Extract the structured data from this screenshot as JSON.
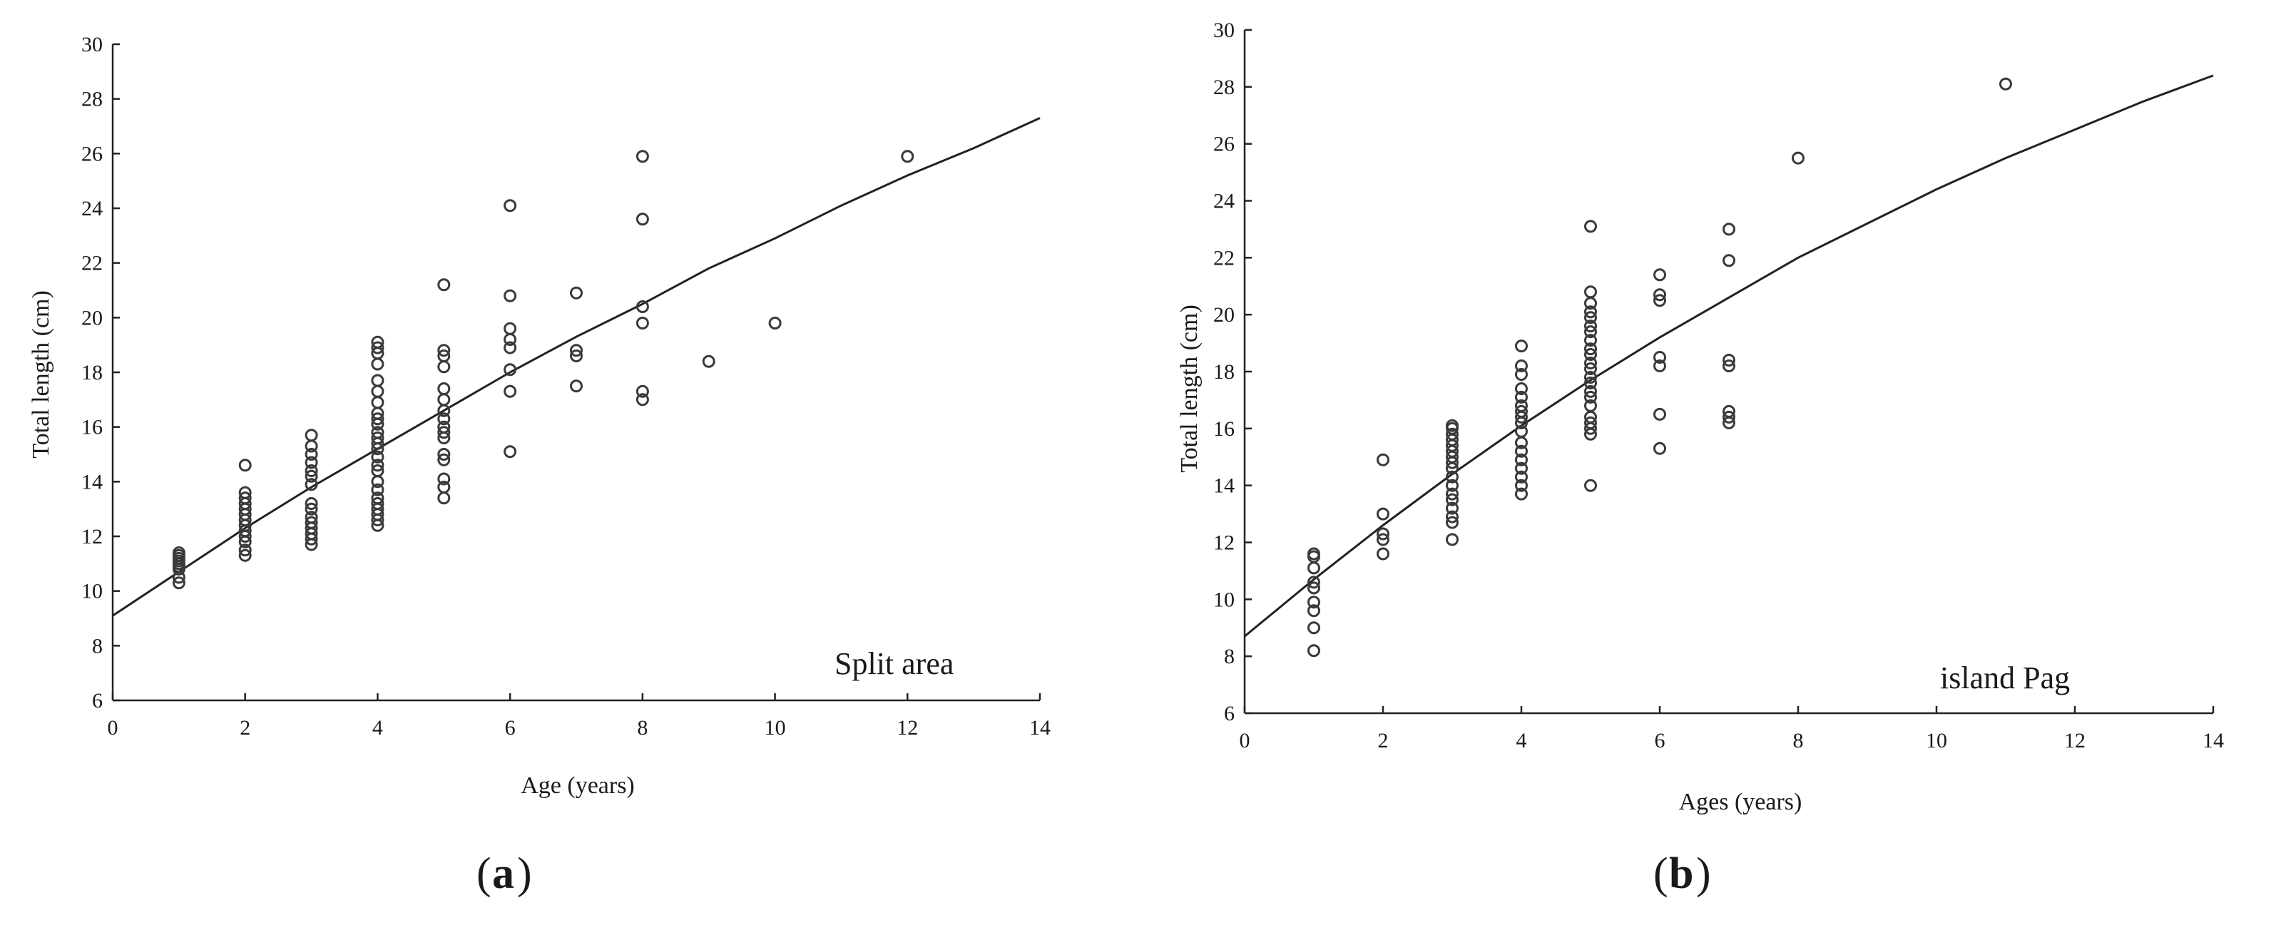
{
  "chart_data": [
    {
      "type": "scatter",
      "panel": "a",
      "annotation": "Split area",
      "xlabel": "Age (years)",
      "ylabel": "Total length (cm)",
      "xlim": [
        0,
        14
      ],
      "ylim": [
        6,
        30
      ],
      "xticks": [
        0,
        2,
        4,
        6,
        8,
        10,
        12,
        14
      ],
      "yticks": [
        6,
        8,
        10,
        12,
        14,
        16,
        18,
        20,
        22,
        24,
        26,
        28,
        30
      ],
      "grid": false,
      "fit_curve": {
        "type": "von Bertalanffy growth",
        "x": [
          0,
          1,
          2,
          3,
          4,
          5,
          6,
          7,
          8,
          9,
          10,
          11,
          12,
          13,
          14
        ],
        "y": [
          9.1,
          10.7,
          12.3,
          13.8,
          15.2,
          16.6,
          18.0,
          19.3,
          20.5,
          21.8,
          22.9,
          24.1,
          25.2,
          26.2,
          27.3
        ]
      },
      "points": [
        [
          1,
          10.3
        ],
        [
          1,
          10.5
        ],
        [
          1,
          10.8
        ],
        [
          1,
          10.9
        ],
        [
          1,
          11.0
        ],
        [
          1,
          11.1
        ],
        [
          1,
          11.2
        ],
        [
          1,
          11.3
        ],
        [
          1,
          11.4
        ],
        [
          2,
          11.3
        ],
        [
          2,
          11.5
        ],
        [
          2,
          11.8
        ],
        [
          2,
          12.0
        ],
        [
          2,
          12.2
        ],
        [
          2,
          12.4
        ],
        [
          2,
          12.6
        ],
        [
          2,
          12.8
        ],
        [
          2,
          13.0
        ],
        [
          2,
          13.2
        ],
        [
          2,
          13.4
        ],
        [
          2,
          13.6
        ],
        [
          2,
          14.6
        ],
        [
          3,
          11.7
        ],
        [
          3,
          11.9
        ],
        [
          3,
          12.1
        ],
        [
          3,
          12.3
        ],
        [
          3,
          12.5
        ],
        [
          3,
          12.7
        ],
        [
          3,
          13.0
        ],
        [
          3,
          13.2
        ],
        [
          3,
          13.9
        ],
        [
          3,
          14.2
        ],
        [
          3,
          14.4
        ],
        [
          3,
          14.7
        ],
        [
          3,
          15.0
        ],
        [
          3,
          15.3
        ],
        [
          3,
          15.7
        ],
        [
          4,
          12.4
        ],
        [
          4,
          12.6
        ],
        [
          4,
          12.8
        ],
        [
          4,
          13.0
        ],
        [
          4,
          13.2
        ],
        [
          4,
          13.4
        ],
        [
          4,
          13.7
        ],
        [
          4,
          14.0
        ],
        [
          4,
          14.4
        ],
        [
          4,
          14.6
        ],
        [
          4,
          14.9
        ],
        [
          4,
          15.2
        ],
        [
          4,
          15.4
        ],
        [
          4,
          15.6
        ],
        [
          4,
          15.8
        ],
        [
          4,
          16.1
        ],
        [
          4,
          16.3
        ],
        [
          4,
          16.5
        ],
        [
          4,
          16.9
        ],
        [
          4,
          17.3
        ],
        [
          4,
          17.7
        ],
        [
          4,
          18.3
        ],
        [
          4,
          18.7
        ],
        [
          4,
          18.9
        ],
        [
          4,
          19.1
        ],
        [
          5,
          13.4
        ],
        [
          5,
          13.8
        ],
        [
          5,
          14.1
        ],
        [
          5,
          14.8
        ],
        [
          5,
          15.0
        ],
        [
          5,
          15.6
        ],
        [
          5,
          15.8
        ],
        [
          5,
          16.0
        ],
        [
          5,
          16.3
        ],
        [
          5,
          16.6
        ],
        [
          5,
          17.0
        ],
        [
          5,
          17.4
        ],
        [
          5,
          18.2
        ],
        [
          5,
          18.6
        ],
        [
          5,
          18.8
        ],
        [
          5,
          21.2
        ],
        [
          6,
          15.1
        ],
        [
          6,
          17.3
        ],
        [
          6,
          18.1
        ],
        [
          6,
          18.9
        ],
        [
          6,
          19.2
        ],
        [
          6,
          19.6
        ],
        [
          6,
          20.8
        ],
        [
          6,
          24.1
        ],
        [
          7,
          17.5
        ],
        [
          7,
          18.6
        ],
        [
          7,
          18.8
        ],
        [
          7,
          20.9
        ],
        [
          8,
          17.0
        ],
        [
          8,
          17.3
        ],
        [
          8,
          19.8
        ],
        [
          8,
          20.4
        ],
        [
          8,
          23.6
        ],
        [
          8,
          25.9
        ],
        [
          9,
          18.4
        ],
        [
          10,
          19.8
        ],
        [
          12,
          25.9
        ]
      ]
    },
    {
      "type": "scatter",
      "panel": "b",
      "annotation": "island Pag",
      "xlabel": "Ages (years)",
      "ylabel": "Total length (cm)",
      "xlim": [
        0,
        14
      ],
      "ylim": [
        6,
        30
      ],
      "xticks": [
        0,
        2,
        4,
        6,
        8,
        10,
        12,
        14
      ],
      "yticks": [
        6,
        8,
        10,
        12,
        14,
        16,
        18,
        20,
        22,
        24,
        26,
        28,
        30
      ],
      "grid": false,
      "fit_curve": {
        "type": "von Bertalanffy growth",
        "x": [
          0,
          1,
          2,
          3,
          4,
          5,
          6,
          7,
          8,
          9,
          10,
          11,
          12,
          13,
          14
        ],
        "y": [
          8.7,
          10.7,
          12.6,
          14.4,
          16.1,
          17.7,
          19.2,
          20.6,
          22.0,
          23.2,
          24.4,
          25.5,
          26.5,
          27.5,
          28.4
        ]
      },
      "points": [
        [
          1,
          8.2
        ],
        [
          1,
          9.0
        ],
        [
          1,
          9.6
        ],
        [
          1,
          9.9
        ],
        [
          1,
          10.4
        ],
        [
          1,
          10.6
        ],
        [
          1,
          11.1
        ],
        [
          1,
          11.5
        ],
        [
          1,
          11.6
        ],
        [
          2,
          11.6
        ],
        [
          2,
          12.1
        ],
        [
          2,
          12.3
        ],
        [
          2,
          13.0
        ],
        [
          2,
          14.9
        ],
        [
          3,
          12.1
        ],
        [
          3,
          12.7
        ],
        [
          3,
          12.9
        ],
        [
          3,
          13.2
        ],
        [
          3,
          13.5
        ],
        [
          3,
          13.7
        ],
        [
          3,
          14.0
        ],
        [
          3,
          14.3
        ],
        [
          3,
          14.6
        ],
        [
          3,
          14.8
        ],
        [
          3,
          15.0
        ],
        [
          3,
          15.2
        ],
        [
          3,
          15.4
        ],
        [
          3,
          15.6
        ],
        [
          3,
          15.8
        ],
        [
          3,
          16.0
        ],
        [
          3,
          16.1
        ],
        [
          4,
          13.7
        ],
        [
          4,
          14.0
        ],
        [
          4,
          14.3
        ],
        [
          4,
          14.6
        ],
        [
          4,
          14.9
        ],
        [
          4,
          15.2
        ],
        [
          4,
          15.5
        ],
        [
          4,
          15.9
        ],
        [
          4,
          16.2
        ],
        [
          4,
          16.4
        ],
        [
          4,
          16.6
        ],
        [
          4,
          16.8
        ],
        [
          4,
          17.1
        ],
        [
          4,
          17.4
        ],
        [
          4,
          17.9
        ],
        [
          4,
          18.2
        ],
        [
          4,
          18.9
        ],
        [
          5,
          14.0
        ],
        [
          5,
          15.8
        ],
        [
          5,
          16.0
        ],
        [
          5,
          16.2
        ],
        [
          5,
          16.4
        ],
        [
          5,
          16.8
        ],
        [
          5,
          17.1
        ],
        [
          5,
          17.3
        ],
        [
          5,
          17.6
        ],
        [
          5,
          17.8
        ],
        [
          5,
          18.1
        ],
        [
          5,
          18.3
        ],
        [
          5,
          18.6
        ],
        [
          5,
          18.8
        ],
        [
          5,
          19.1
        ],
        [
          5,
          19.4
        ],
        [
          5,
          19.6
        ],
        [
          5,
          19.9
        ],
        [
          5,
          20.1
        ],
        [
          5,
          20.4
        ],
        [
          5,
          20.8
        ],
        [
          5,
          23.1
        ],
        [
          6,
          15.3
        ],
        [
          6,
          16.5
        ],
        [
          6,
          18.2
        ],
        [
          6,
          18.5
        ],
        [
          6,
          20.5
        ],
        [
          6,
          20.7
        ],
        [
          6,
          21.4
        ],
        [
          7,
          16.2
        ],
        [
          7,
          16.4
        ],
        [
          7,
          16.6
        ],
        [
          7,
          18.2
        ],
        [
          7,
          18.4
        ],
        [
          7,
          21.9
        ],
        [
          7,
          23.0
        ],
        [
          8,
          25.5
        ],
        [
          11,
          28.1
        ]
      ]
    }
  ]
}
